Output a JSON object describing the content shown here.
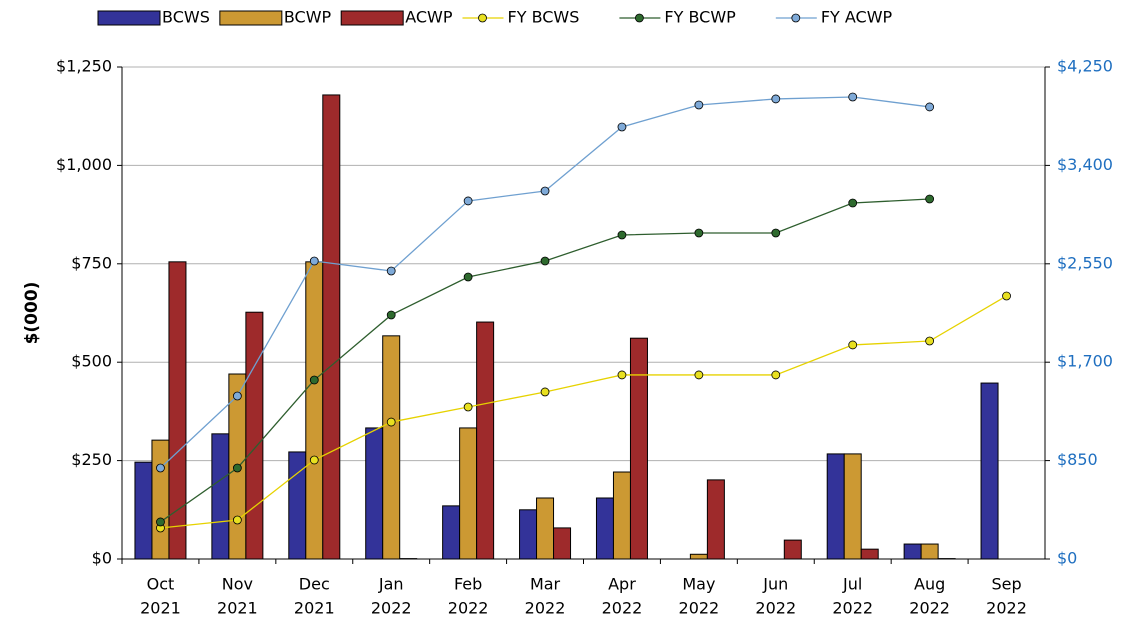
{
  "chart_data": {
    "type": "bar",
    "y_label": "$(000)",
    "categories": [
      [
        "Oct",
        "2021"
      ],
      [
        "Nov",
        "2021"
      ],
      [
        "Dec",
        "2021"
      ],
      [
        "Jan",
        "2022"
      ],
      [
        "Feb",
        "2022"
      ],
      [
        "Mar",
        "2022"
      ],
      [
        "Apr",
        "2022"
      ],
      [
        "May",
        "2022"
      ],
      [
        "Jun",
        "2022"
      ],
      [
        "Jul",
        "2022"
      ],
      [
        "Aug",
        "2022"
      ],
      [
        "Sep",
        "2022"
      ]
    ],
    "series": [
      {
        "name": "BCWS",
        "type": "bar",
        "color": "#333399",
        "values": [
          246,
          318,
          272,
          333,
          135,
          125,
          155,
          0,
          0,
          267,
          38,
          447
        ]
      },
      {
        "name": "BCWP",
        "type": "bar",
        "color": "#cc9933",
        "values": [
          302,
          470,
          755,
          567,
          333,
          155,
          221,
          12,
          0,
          267,
          38,
          null
        ]
      },
      {
        "name": "ACWP",
        "type": "bar",
        "color": "#9e2a2b",
        "values": [
          755,
          627,
          1179,
          1,
          602,
          79,
          561,
          201,
          48,
          25,
          1,
          null
        ]
      },
      {
        "name": "FY BCWS",
        "type": "line",
        "axis": "y2",
        "color": "#e6d200",
        "marker_color": "#e8e020",
        "values": [
          268,
          337,
          855,
          1183,
          1313,
          1443,
          1590,
          1590,
          1590,
          1849,
          1883,
          2272
        ]
      },
      {
        "name": "FY BCWP",
        "type": "line",
        "axis": "y2",
        "color": "#2e5e2e",
        "marker_color": "#2e6a2e",
        "values": [
          320,
          786,
          1546,
          2108,
          2436,
          2574,
          2799,
          2816,
          2816,
          3075,
          3110,
          null
        ]
      },
      {
        "name": "FY ACWP",
        "type": "line",
        "axis": "y2",
        "color": "#6fa0d0",
        "marker_color": "#7faad8",
        "values": [
          786,
          1408,
          2574,
          2488,
          3093,
          3179,
          3732,
          3922,
          3974,
          3991,
          3905,
          null
        ]
      }
    ],
    "ylim": [
      0,
      1250
    ],
    "yticks": [
      {
        "value": 0,
        "label": "$0"
      },
      {
        "value": 250,
        "label": "$250"
      },
      {
        "value": 500,
        "label": "$500"
      },
      {
        "value": 750,
        "label": "$750"
      },
      {
        "value": 1000,
        "label": "$1,000"
      },
      {
        "value": 1250,
        "label": "$1,250"
      }
    ],
    "y2lim": [
      0,
      4250
    ],
    "y2ticks": [
      {
        "value": 0,
        "label": "$0"
      },
      {
        "value": 850,
        "label": "$850"
      },
      {
        "value": 1700,
        "label": "$1,700"
      },
      {
        "value": 2550,
        "label": "$2,550"
      },
      {
        "value": 3400,
        "label": "$3,400"
      },
      {
        "value": 4250,
        "label": "$4,250"
      }
    ],
    "y2_color": "#1f6fc0",
    "grid": true,
    "legend": "top"
  }
}
